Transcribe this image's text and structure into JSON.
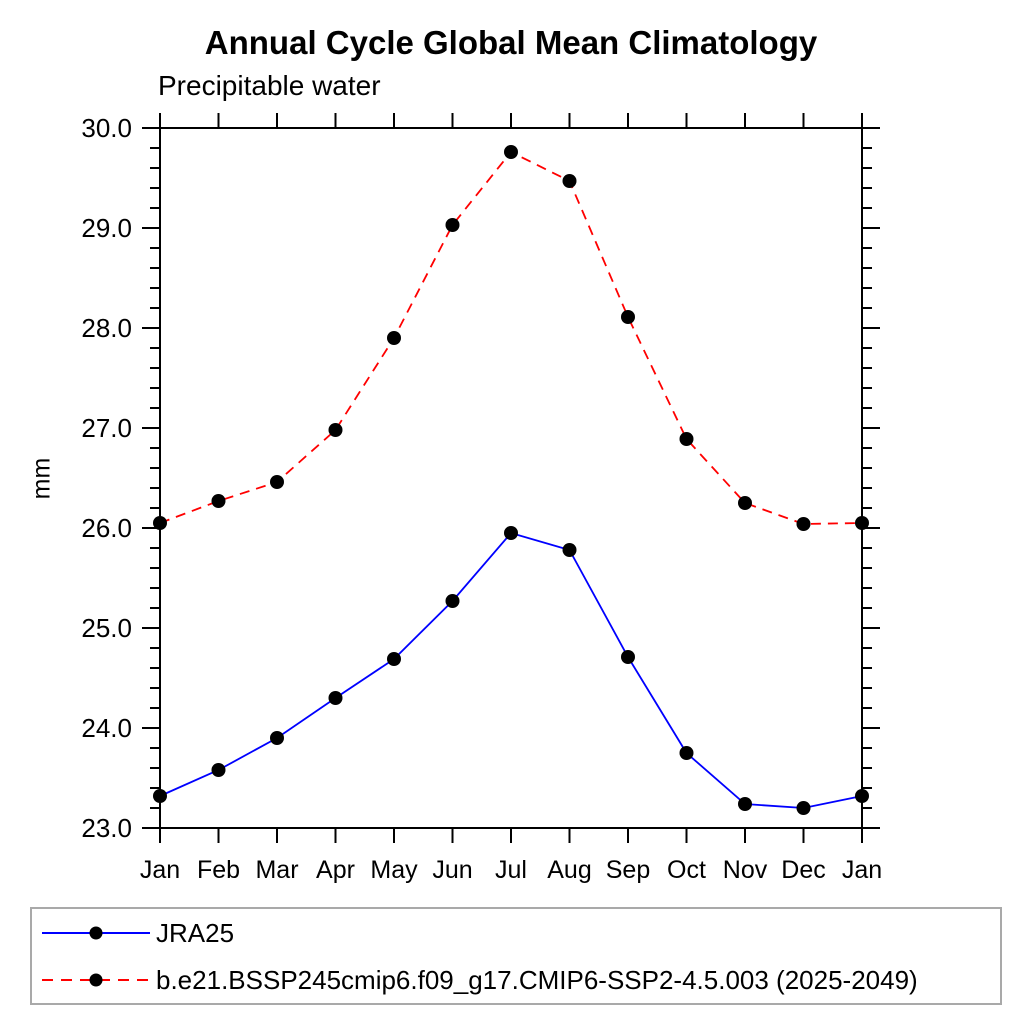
{
  "chart_data": {
    "type": "line",
    "title": "Annual Cycle Global Mean Climatology",
    "subtitle": "Precipitable water",
    "ylabel": "mm",
    "xlabel": "",
    "categories": [
      "Jan",
      "Feb",
      "Mar",
      "Apr",
      "May",
      "Jun",
      "Jul",
      "Aug",
      "Sep",
      "Oct",
      "Nov",
      "Dec",
      "Jan"
    ],
    "ylim": [
      23.0,
      30.0
    ],
    "y_major_step": 1.0,
    "y_minor_step": 0.2,
    "y_tick_format_decimals": 1,
    "grid": false,
    "legend_position": "bottom",
    "axis_color": "#000000",
    "marker_color": "#000000",
    "series": [
      {
        "name": "JRA25",
        "color": "#0000ff",
        "line_style": "solid",
        "marker": "circle",
        "values": [
          23.32,
          23.58,
          23.9,
          24.3,
          24.69,
          25.27,
          25.95,
          25.78,
          24.71,
          23.75,
          23.24,
          23.2,
          23.32
        ]
      },
      {
        "name": "b.e21.BSSP245cmip6.f09_g17.CMIP6-SSP2-4.5.003 (2025-2049)",
        "color": "#ff0000",
        "line_style": "dashed",
        "marker": "circle",
        "values": [
          26.05,
          26.27,
          26.46,
          26.98,
          27.9,
          29.03,
          29.76,
          29.47,
          28.11,
          26.89,
          26.25,
          26.04,
          26.05
        ]
      }
    ]
  }
}
